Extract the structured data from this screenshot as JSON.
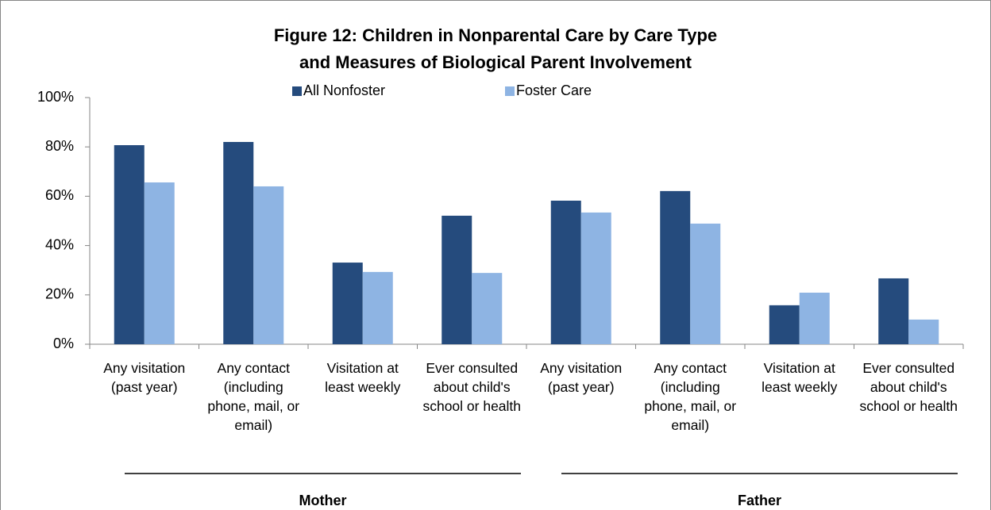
{
  "chart_data": {
    "type": "bar",
    "title": [
      "Figure 12: Children in Nonparental Care by Care Type",
      "and Measures of Biological Parent Involvement"
    ],
    "categories": [
      "Any visitation (past year)",
      "Any contact (including phone, mail, or email)",
      "Visitation at least weekly",
      "Ever consulted about child's school or health",
      "Any visitation (past year)",
      "Any contact (including phone, mail, or email)",
      "Visitation at least weekly",
      "Ever consulted about child's school or health"
    ],
    "groups": [
      "Mother",
      "Father"
    ],
    "series": [
      {
        "name": "All Nonfoster",
        "color": "#254b7d",
        "values": [
          80.7,
          82,
          33.1,
          52.1,
          58.2,
          62.1,
          15.8,
          26.7
        ]
      },
      {
        "name": "Foster Care",
        "color": "#8eb4e3",
        "values": [
          65.6,
          64,
          29.3,
          28.9,
          53.4,
          48.9,
          20.9,
          10
        ]
      }
    ],
    "ylim": [
      0,
      100
    ],
    "yticks": [
      {
        "value": 0,
        "label": "0%"
      },
      {
        "value": 20,
        "label": "20%"
      },
      {
        "value": 40,
        "label": "40%"
      },
      {
        "value": 60,
        "label": "60%"
      },
      {
        "value": 80,
        "label": "80%"
      },
      {
        "value": 100,
        "label": "100%"
      }
    ],
    "legend": "top"
  }
}
